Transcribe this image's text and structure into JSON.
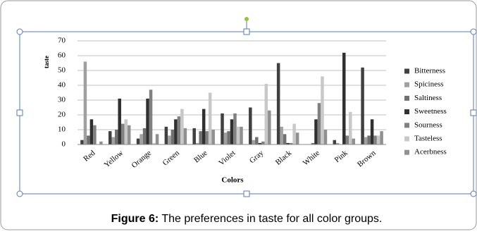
{
  "chart_data": {
    "type": "bar",
    "ylabel": "taste",
    "xlabel": "Colors",
    "categories": [
      "Red",
      "Yellow",
      "Orange",
      "Green",
      "Blue",
      "Violet",
      "Gray",
      "Black",
      "White",
      "Pink",
      "Brown"
    ],
    "series": [
      {
        "name": "Bitterness",
        "color": "#404040",
        "values": [
          3,
          9,
          4,
          12,
          11,
          21,
          25,
          55,
          0,
          3,
          52
        ]
      },
      {
        "name": "Spiciness",
        "color": "#a0a0a0",
        "values": [
          56,
          5,
          7,
          6,
          1,
          8,
          3,
          12,
          0,
          1,
          5
        ]
      },
      {
        "name": "Saltiness",
        "color": "#707070",
        "values": [
          6,
          10,
          11,
          10,
          9,
          9,
          5,
          7,
          1,
          0,
          6
        ]
      },
      {
        "name": "Sweetness",
        "color": "#303030",
        "values": [
          17,
          31,
          31,
          17,
          24,
          17,
          1,
          1,
          17,
          62,
          17
        ]
      },
      {
        "name": "Sourness",
        "color": "#808080",
        "values": [
          13,
          14,
          37,
          19,
          9,
          21,
          2,
          1,
          28,
          6,
          6
        ]
      },
      {
        "name": "Tasteless",
        "color": "#c8c8c8",
        "values": [
          0,
          17,
          1,
          24,
          35,
          12,
          41,
          14,
          46,
          22,
          6
        ]
      },
      {
        "name": "Acerbness",
        "color": "#909090",
        "values": [
          2,
          13,
          7,
          11,
          10,
          12,
          23,
          8,
          10,
          4,
          9
        ]
      }
    ],
    "ylim": [
      0,
      70
    ],
    "yticks": [
      0,
      10,
      20,
      30,
      40,
      50,
      60,
      70
    ],
    "grid": true
  },
  "caption": {
    "label": "Figure 6:",
    "text": "The preferences in taste for all color groups."
  }
}
